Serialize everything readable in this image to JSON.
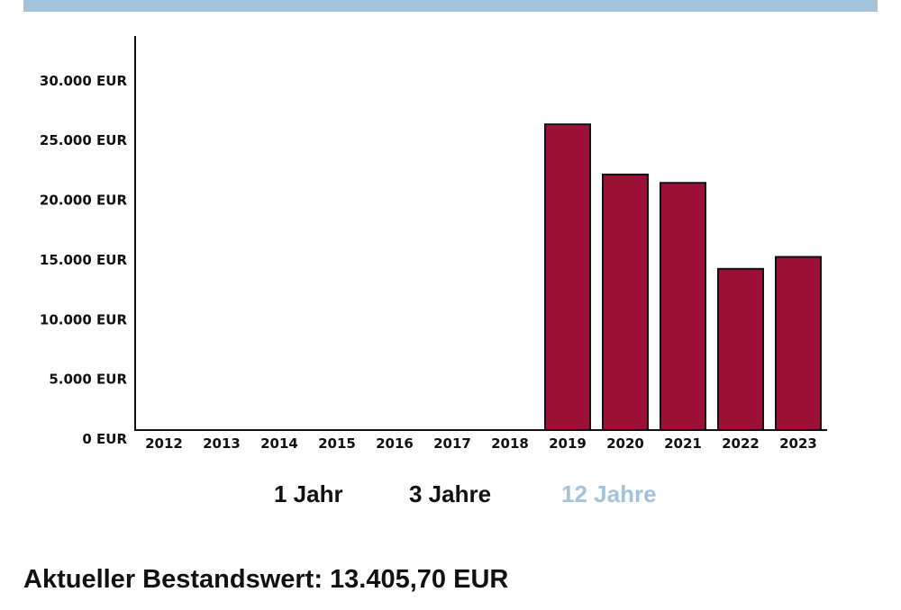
{
  "colors": {
    "bar": "#9b1136",
    "accent_bar": "#a5c2db",
    "active_tab": "#a5c2db",
    "text": "#111111"
  },
  "chart_data": {
    "type": "bar",
    "categories": [
      "2012",
      "2013",
      "2014",
      "2015",
      "2016",
      "2017",
      "2018",
      "2019",
      "2020",
      "2021",
      "2022",
      "2023"
    ],
    "values": [
      0,
      0,
      0,
      0,
      0,
      0,
      0,
      25600,
      21400,
      20700,
      13500,
      14500
    ],
    "y_ticks": [
      "0 EUR",
      "5.000 EUR",
      "10.000 EUR",
      "15.000 EUR",
      "20.000 EUR",
      "25.000 EUR",
      "30.000 EUR"
    ],
    "ylim": [
      0,
      33000
    ],
    "title": "",
    "xlabel": "",
    "ylabel": "",
    "grid": false
  },
  "range_tabs": [
    {
      "label": "1 Jahr",
      "active": false
    },
    {
      "label": "3 Jahre",
      "active": false
    },
    {
      "label": "12 Jahre",
      "active": true
    }
  ],
  "current_value": {
    "label": "Aktueller Bestandswert: 13.405,70 EUR"
  }
}
